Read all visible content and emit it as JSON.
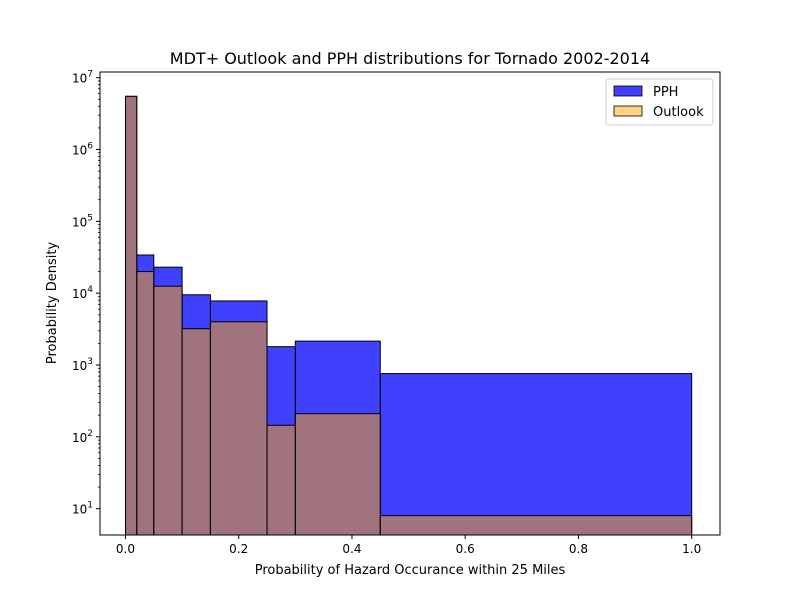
{
  "chart_data": {
    "type": "histogram",
    "title": "MDT+ Outlook and PPH distributions for Tornado 2002-2014",
    "xlabel": "Probability of Hazard Occurance within 25 Miles",
    "ylabel": "Probability Density",
    "xlim": [
      -0.045,
      1.05
    ],
    "ylim": [
      4.3,
      12000000
    ],
    "yscale": "log",
    "xticks": [
      0.0,
      0.2,
      0.4,
      0.6,
      0.8,
      1.0
    ],
    "xtick_labels": [
      "0.0",
      "0.2",
      "0.4",
      "0.6",
      "0.8",
      "1.0"
    ],
    "yticks": [
      {
        "value": 10,
        "base": "10",
        "exp": "1"
      },
      {
        "value": 100,
        "base": "10",
        "exp": "2"
      },
      {
        "value": 1000,
        "base": "10",
        "exp": "3"
      },
      {
        "value": 10000,
        "base": "10",
        "exp": "4"
      },
      {
        "value": 100000,
        "base": "10",
        "exp": "5"
      },
      {
        "value": 1000000,
        "base": "10",
        "exp": "6"
      },
      {
        "value": 10000000,
        "base": "10",
        "exp": "7"
      }
    ],
    "series": [
      {
        "name": "PPH",
        "color": "#0000ff",
        "opacity": 0.75,
        "bins": [
          {
            "x0": 0.0,
            "x1": 0.02,
            "value": 5500000
          },
          {
            "x0": 0.02,
            "x1": 0.05,
            "value": 34000
          },
          {
            "x0": 0.05,
            "x1": 0.1,
            "value": 23000
          },
          {
            "x0": 0.1,
            "x1": 0.15,
            "value": 9500
          },
          {
            "x0": 0.15,
            "x1": 0.25,
            "value": 7800
          },
          {
            "x0": 0.25,
            "x1": 0.3,
            "value": 1800
          },
          {
            "x0": 0.3,
            "x1": 0.45,
            "value": 2150
          },
          {
            "x0": 0.45,
            "x1": 1.0,
            "value": 760
          }
        ]
      },
      {
        "name": "Outlook",
        "color": "#ffa500",
        "opacity": 0.5,
        "bins": [
          {
            "x0": 0.0,
            "x1": 0.02,
            "value": 5500000
          },
          {
            "x0": 0.02,
            "x1": 0.05,
            "value": 20000
          },
          {
            "x0": 0.05,
            "x1": 0.1,
            "value": 12500
          },
          {
            "x0": 0.1,
            "x1": 0.15,
            "value": 3200
          },
          {
            "x0": 0.15,
            "x1": 0.25,
            "value": 4000
          },
          {
            "x0": 0.25,
            "x1": 0.3,
            "value": 145
          },
          {
            "x0": 0.3,
            "x1": 0.45,
            "value": 210
          },
          {
            "x0": 0.45,
            "x1": 1.0,
            "value": 8
          }
        ]
      }
    ],
    "legend": {
      "position": "top-right"
    },
    "grid": false
  }
}
